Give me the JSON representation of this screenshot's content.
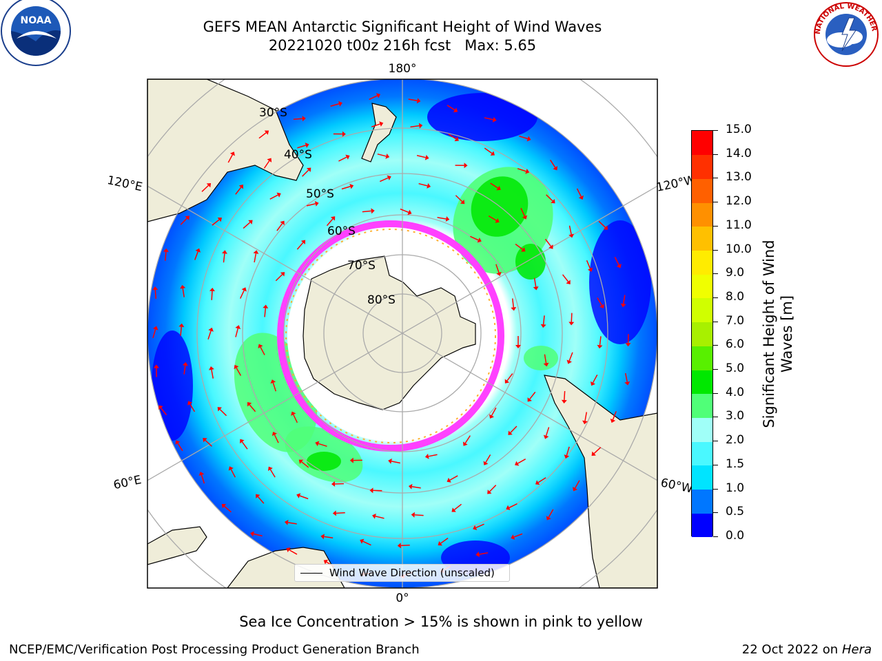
{
  "title": {
    "line1": "GEFS MEAN Antarctic Significant Height of Wind Waves",
    "line2": "20221020 t00z 216h fcst   Max: 5.65"
  },
  "map": {
    "projection": "south-polar-stereographic",
    "longitude_labels": [
      "180°",
      "120°E",
      "120°W",
      "60°E",
      "60°W",
      "0°"
    ],
    "latitude_labels": [
      "30°S",
      "40°S",
      "50°S",
      "60°S",
      "70°S",
      "80°S"
    ],
    "legend_label": "Wind Wave Direction (unscaled)",
    "arrow_color": "#ff0000",
    "land_color": "#efedd9",
    "ice_colors": [
      "#ff40ff",
      "#ffb030"
    ]
  },
  "colorbar": {
    "label": "Significant Height of Wind Waves [m]",
    "tick_labels": [
      "0.0",
      "0.5",
      "1.0",
      "1.5",
      "2.0",
      "3.0",
      "4.0",
      "5.0",
      "6.0",
      "7.0",
      "8.0",
      "9.0",
      "10.0",
      "11.0",
      "12.0",
      "13.0",
      "14.0",
      "15.0"
    ],
    "colors": [
      "#0000ff",
      "#0077ff",
      "#00e4ff",
      "#4af8ff",
      "#a0fff8",
      "#50ff78",
      "#00e800",
      "#58f000",
      "#a8f000",
      "#d0ff00",
      "#f0ff00",
      "#ffec00",
      "#ffc000",
      "#ff9000",
      "#ff6000",
      "#ff3000",
      "#ff0000"
    ]
  },
  "note": "Sea Ice Concentration > 15% is shown in pink to yellow",
  "footer": {
    "left": "NCEP/EMC/Verification Post Processing Product Generation Branch",
    "right_prefix": "22 Oct 2022 on ",
    "right_host": "Hera"
  },
  "logos": {
    "noaa": "NOAA",
    "nws": "NATIONAL WEATHER SERVICE"
  }
}
